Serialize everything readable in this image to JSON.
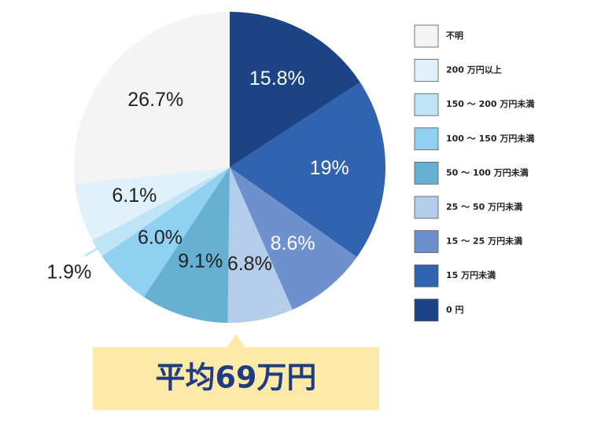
{
  "chart_data": {
    "type": "pie",
    "categories": [
      "0 円",
      "15 万円未満",
      "15 ～ 25 万円未満",
      "25 ～ 50 万円未満",
      "50 ～ 100 万円未満",
      "100 ～ 150 万円未満",
      "150 ～ 200 万円未満",
      "200 万円以上",
      "不明"
    ],
    "values": [
      15.8,
      19,
      8.6,
      6.8,
      9.1,
      6.0,
      1.9,
      6.1,
      26.7
    ],
    "value_labels": [
      "15.8%",
      "19%",
      "8.6%",
      "6.8%",
      "9.1%",
      "6.0%",
      "1.9%",
      "6.1%",
      "26.7%"
    ],
    "colors": [
      "#1b4386",
      "#3263b0",
      "#6d91cc",
      "#b4cdea",
      "#66b1d1",
      "#90d1f1",
      "#bfe4f6",
      "#e0f1fa",
      "#f4f4f4"
    ],
    "annotation": "平均69万円"
  }
}
